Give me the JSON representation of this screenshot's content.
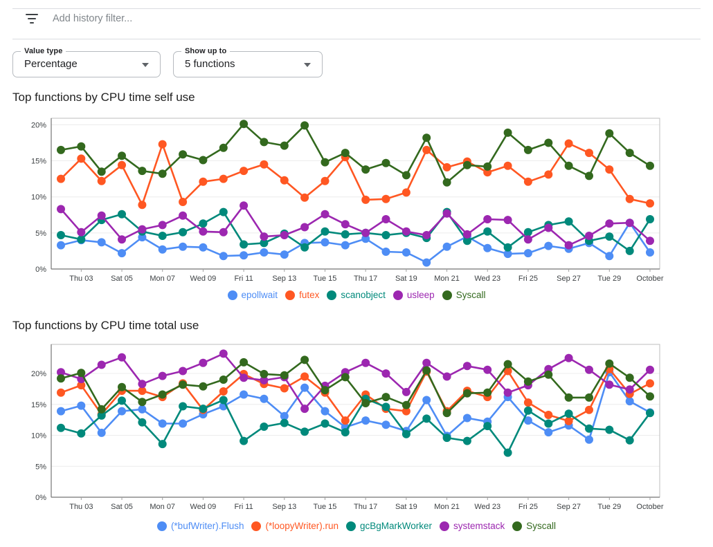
{
  "filter_bar": {
    "placeholder": "Add history filter..."
  },
  "controls": [
    {
      "label": "Value type",
      "value": "Percentage"
    },
    {
      "label": "Show up to",
      "value": "5 functions"
    }
  ],
  "colors": {
    "blue": "#4E8DF5",
    "orange": "#FF5722",
    "teal": "#00897B",
    "purple": "#9C27B0",
    "green": "#33691E"
  },
  "chart_data": [
    {
      "type": "line",
      "title": "Top functions by CPU time self use",
      "x_labels": [
        "Thu 03",
        "Sat 05",
        "Mon 07",
        "Wed 09",
        "Fri 11",
        "Sep 13",
        "Tue 15",
        "Thu 17",
        "Sat 19",
        "Mon 21",
        "Wed 23",
        "Fri 25",
        "Sep 27",
        "Tue 29",
        "October"
      ],
      "y_ticks": [
        0,
        5,
        10,
        15,
        20
      ],
      "y_tick_suffix": "%",
      "ylim": [
        0,
        20.9
      ],
      "grid": true,
      "legend_position": "bottom",
      "series": [
        {
          "name": "epollwait",
          "color": "#4E8DF5",
          "values": [
            3.3,
            4.0,
            3.7,
            2.2,
            4.4,
            2.7,
            3.1,
            3.0,
            1.8,
            1.9,
            2.3,
            2.0,
            3.6,
            3.7,
            3.3,
            4.2,
            2.4,
            2.3,
            0.9,
            3.1,
            4.5,
            2.9,
            2.1,
            2.2,
            3.2,
            2.8,
            3.6,
            1.8,
            6.4,
            2.3
          ]
        },
        {
          "name": "futex",
          "color": "#FF5722",
          "values": [
            12.5,
            15.3,
            12.2,
            14.4,
            8.9,
            17.3,
            9.3,
            12.1,
            12.5,
            13.6,
            14.5,
            12.3,
            9.9,
            12.2,
            15.5,
            9.6,
            9.7,
            10.6,
            16.5,
            14.1,
            14.9,
            13.4,
            14.3,
            12.1,
            13.1,
            17.4,
            16.1,
            13.8,
            9.7,
            9.1
          ]
        },
        {
          "name": "scanobject",
          "color": "#00897B",
          "values": [
            4.7,
            4.1,
            6.8,
            7.6,
            5.2,
            4.6,
            5.1,
            6.3,
            7.9,
            3.4,
            3.6,
            4.9,
            3.0,
            5.2,
            4.8,
            5.0,
            4.7,
            5.0,
            4.3,
            7.9,
            3.9,
            5.2,
            3.0,
            5.1,
            6.1,
            6.6,
            3.9,
            4.5,
            2.5,
            6.9
          ]
        },
        {
          "name": "usleep",
          "color": "#9C27B0",
          "values": [
            8.3,
            5.1,
            7.4,
            4.1,
            5.5,
            6.1,
            7.4,
            5.2,
            5.1,
            8.8,
            4.5,
            4.7,
            5.8,
            7.6,
            6.2,
            5.0,
            6.9,
            5.2,
            4.7,
            7.7,
            4.8,
            6.9,
            6.8,
            4.1,
            5.7,
            3.3,
            4.6,
            6.3,
            6.4,
            3.9
          ]
        },
        {
          "name": "Syscall",
          "color": "#33691E",
          "values": [
            16.5,
            17.0,
            13.5,
            15.7,
            13.6,
            13.2,
            15.9,
            15.1,
            16.8,
            20.1,
            17.6,
            17.1,
            19.9,
            14.8,
            16.1,
            13.8,
            14.7,
            13.0,
            18.2,
            12.0,
            14.4,
            14.2,
            18.9,
            16.5,
            17.5,
            14.3,
            12.9,
            18.8,
            16.1,
            14.3
          ]
        }
      ]
    },
    {
      "type": "line",
      "title": "Top functions by CPU time total use",
      "x_labels": [
        "Thu 03",
        "Sat 05",
        "Mon 07",
        "Wed 09",
        "Fri 11",
        "Sep 13",
        "Tue 15",
        "Thu 17",
        "Sat 19",
        "Mon 21",
        "Wed 23",
        "Fri 25",
        "Sep 27",
        "Tue 29",
        "October"
      ],
      "y_ticks": [
        0,
        5,
        10,
        15,
        20
      ],
      "y_tick_suffix": "%",
      "ylim": [
        0,
        24.7
      ],
      "grid": true,
      "legend_position": "bottom",
      "series": [
        {
          "name": "(*bufWriter).Flush",
          "color": "#4E8DF5",
          "values": [
            13.9,
            14.8,
            10.4,
            13.9,
            14.2,
            11.9,
            11.9,
            13.4,
            14.7,
            16.6,
            15.9,
            13.1,
            17.7,
            13.9,
            11.3,
            12.4,
            11.7,
            10.7,
            15.7,
            9.9,
            12.8,
            12.2,
            16.2,
            12.4,
            10.5,
            11.6,
            9.3,
            20.2,
            15.5,
            13.7
          ]
        },
        {
          "name": "(*loopyWriter).run",
          "color": "#FF5722",
          "values": [
            16.9,
            18.1,
            13.4,
            17.2,
            17.2,
            16.2,
            18.4,
            14.1,
            17.1,
            19.9,
            18.3,
            17.6,
            19.5,
            16.9,
            12.4,
            16.6,
            14.3,
            13.9,
            20.3,
            13.9,
            17.2,
            16.2,
            20.4,
            15.3,
            13.3,
            12.3,
            14.1,
            20.7,
            16.7,
            18.4
          ]
        },
        {
          "name": "gcBgMarkWorker",
          "color": "#00897B",
          "values": [
            11.2,
            10.3,
            13.2,
            15.6,
            12.1,
            8.6,
            14.7,
            14.3,
            15.7,
            9.1,
            11.4,
            12.0,
            10.6,
            11.9,
            10.5,
            15.9,
            14.6,
            10.2,
            12.7,
            9.6,
            9.1,
            11.5,
            7.2,
            14.0,
            11.9,
            13.5,
            11.1,
            10.9,
            9.2,
            13.6
          ]
        },
        {
          "name": "systemstack",
          "color": "#9C27B0",
          "values": [
            20.2,
            19.1,
            21.4,
            22.6,
            18.3,
            19.6,
            20.4,
            21.7,
            23.2,
            19.3,
            18.9,
            19.4,
            14.3,
            18.0,
            20.2,
            21.7,
            20.0,
            17.0,
            21.7,
            19.5,
            21.2,
            20.6,
            16.9,
            18.1,
            20.7,
            22.5,
            20.6,
            18.2,
            17.4,
            20.6
          ]
        },
        {
          "name": "Syscall",
          "color": "#33691E",
          "values": [
            19.2,
            20.1,
            14.2,
            17.8,
            15.4,
            16.6,
            18.2,
            17.9,
            19.0,
            21.8,
            19.9,
            19.7,
            22.2,
            17.3,
            19.4,
            15.2,
            16.2,
            14.9,
            20.5,
            13.6,
            16.8,
            16.9,
            21.5,
            18.7,
            19.8,
            16.1,
            16.1,
            21.6,
            19.3,
            16.3
          ]
        }
      ]
    }
  ]
}
